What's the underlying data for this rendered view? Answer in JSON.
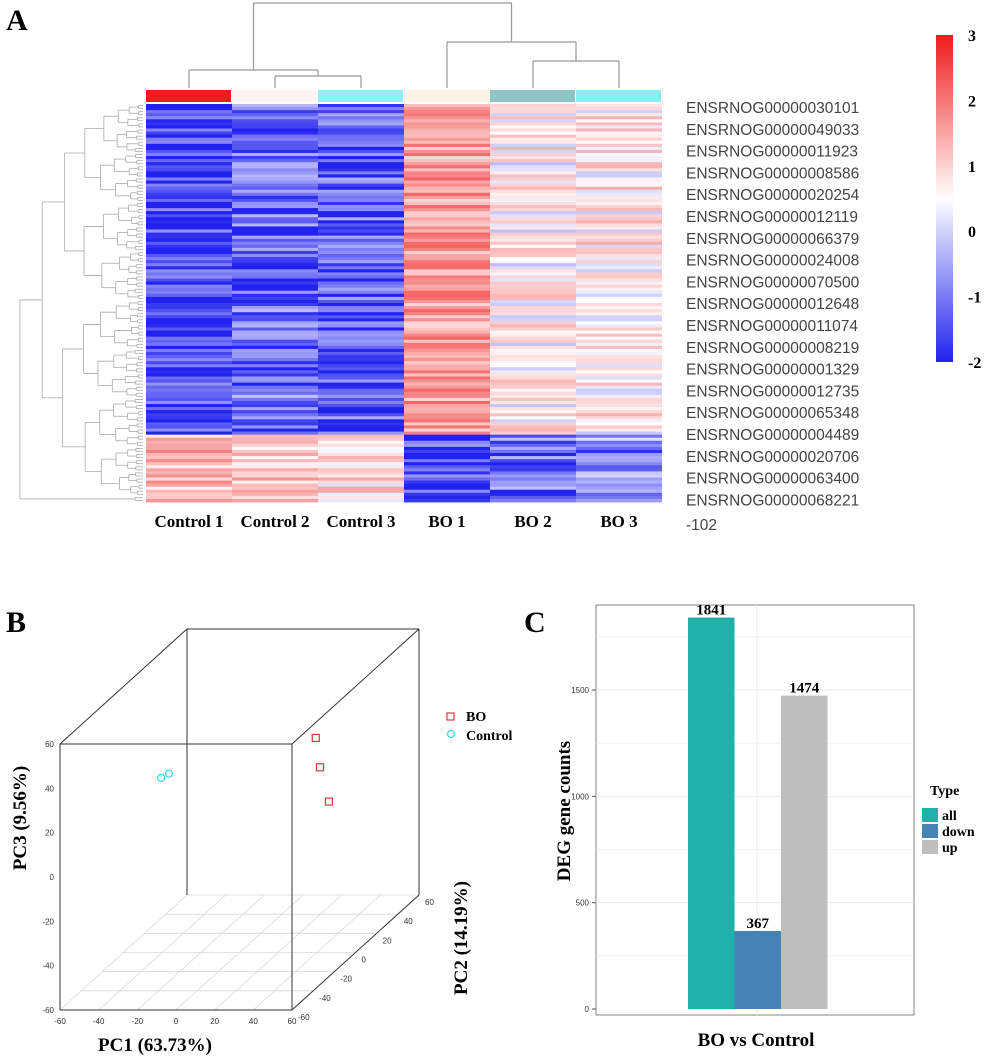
{
  "panels": {
    "a": "A",
    "b": "B",
    "c": "C"
  },
  "colors": {
    "heat_high": "#ee1c1c",
    "heat_mid": "#ffffff",
    "heat_low": "#2222ee",
    "bo_marker": "#d83a3a",
    "control_marker": "#33d8e8",
    "bar_all": "#20b2aa",
    "bar_down": "#4682b4",
    "bar_up": "#bebebe"
  },
  "chart_data": [
    {
      "type": "heatmap",
      "samples": [
        "Control 1",
        "Control 2",
        "Control 3",
        "BO 1",
        "BO 2",
        "BO 3"
      ],
      "sample_annotation_colors": [
        "#ee1c1c",
        "#fdf4f3",
        "#8ef0f3",
        "#fbf1e6",
        "#8ec4c4",
        "#88eef4"
      ],
      "gene_labels": [
        "ENSRNOG00000030101",
        "ENSRNOG00000049033",
        "ENSRNOG00000011923",
        "ENSRNOG00000008586",
        "ENSRNOG00000020254",
        "ENSRNOG00000012119",
        "ENSRNOG00000066379",
        "ENSRNOG00000024008",
        "ENSRNOG00000070500",
        "ENSRNOG00000012648",
        "ENSRNOG00000011074",
        "ENSRNOG00000008219",
        "ENSRNOG00000001329",
        "ENSRNOG00000012735",
        "ENSRNOG00000065348",
        "ENSRNOG00000004489",
        "ENSRNOG00000020706",
        "ENSRNOG00000063400",
        "ENSRNOG00000068221"
      ],
      "gene_label_suffix": "-102",
      "color_scale": {
        "min": -2,
        "max": 3,
        "ticks": [
          "3",
          "2",
          "1",
          "0",
          "-1",
          "-2"
        ]
      },
      "cluster_blocks": [
        {
          "fraction": 0.83,
          "mean_values": [
            -1.75,
            -1.35,
            -1.5,
            1.3,
            0.2,
            0.3
          ]
        },
        {
          "fraction": 0.17,
          "mean_values": [
            0.9,
            0.7,
            0.5,
            -1.7,
            -1.3,
            -1.1
          ]
        }
      ]
    },
    {
      "type": "scatter",
      "projection": "3d",
      "xlabel": "PC1 (63.73%)",
      "ylabel": "PC2 (14.19%)",
      "zlabel": "PC3 (9.56%)",
      "axis_range": [
        -60,
        60
      ],
      "tick_labels": [
        "-60",
        "-40",
        "-20",
        "0",
        "20",
        "40",
        "60"
      ],
      "series": [
        {
          "name": "BO",
          "points": [
            [
              46,
              -12,
              42
            ],
            [
              46,
              -8,
              27
            ],
            [
              55,
              -16,
              15
            ]
          ]
        },
        {
          "name": "Control",
          "points": [
            [
              -34,
              -12,
              24
            ],
            [
              -31,
              -10,
              25
            ]
          ]
        }
      ],
      "legend_position": "top-right"
    },
    {
      "type": "bar",
      "title": "",
      "categories": [
        "BO vs Control"
      ],
      "xlabel": "BO vs Control",
      "ylabel": "DEG gene counts",
      "ylim": [
        0,
        1900
      ],
      "yticks": [
        "0",
        "500",
        "1000",
        "1500"
      ],
      "series": [
        {
          "name": "all",
          "values": [
            1841
          ],
          "label": "1841"
        },
        {
          "name": "down",
          "values": [
            367
          ],
          "label": "367"
        },
        {
          "name": "up",
          "values": [
            1474
          ],
          "label": "1474"
        }
      ],
      "legend_title": "Type",
      "legend_position": "right"
    }
  ]
}
